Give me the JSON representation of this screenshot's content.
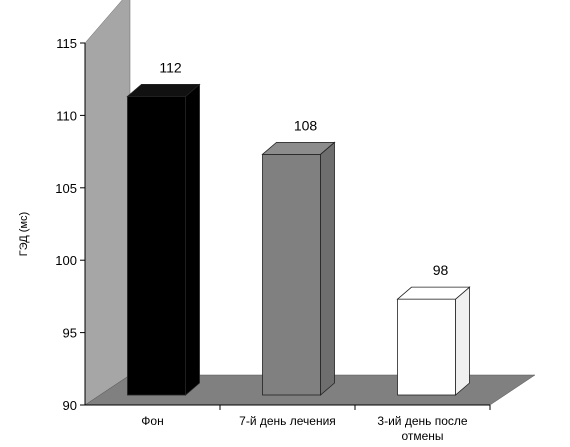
{
  "chart_data": {
    "type": "bar",
    "title": "",
    "ylabel": "ГЭД (мс)",
    "xlabel": "",
    "categories": [
      [
        "Фон"
      ],
      [
        "7-й день лечения"
      ],
      [
        "3-ий день после",
        "отмены"
      ]
    ],
    "values": [
      112,
      108,
      98
    ],
    "ylim": [
      90,
      115
    ],
    "yticks": [
      90,
      95,
      100,
      105,
      110,
      115
    ],
    "bar_colors": [
      "#000000",
      "#808080",
      "#ffffff"
    ],
    "floor_color": "#808080",
    "wall_color": "#a6a6a6",
    "three_d": true,
    "grid": false
  }
}
